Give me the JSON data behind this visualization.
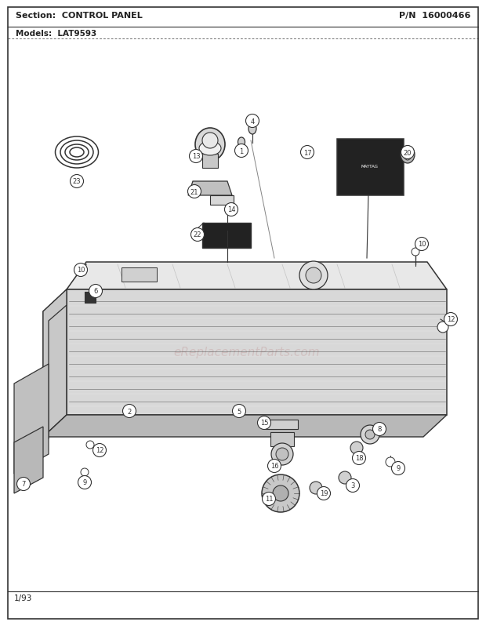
{
  "title_section": "Section:  CONTROL PANEL",
  "title_pn": "P/N  16000466",
  "models_label": "Models:  LAT9593",
  "footer_text": "1/93",
  "bg_color": "#ffffff",
  "border_color": "#000000",
  "text_color": "#222222",
  "lc": "#333333",
  "watermark_text": "eReplacementParts.com",
  "watermark_color": "#c8a8a8",
  "fig_width": 6.2,
  "fig_height": 8.03,
  "dpi": 100
}
